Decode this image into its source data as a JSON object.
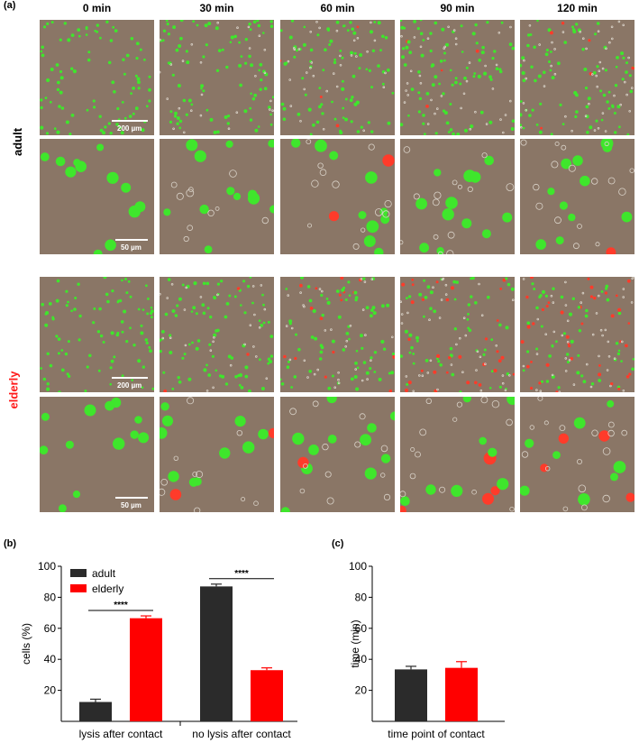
{
  "panel_a": {
    "letter": "(a)",
    "time_points": [
      "0 min",
      "30 min",
      "60 min",
      "90 min",
      "120 min"
    ],
    "groups": [
      {
        "name": "adult",
        "color": "#000000"
      },
      {
        "name": "elderly",
        "color": "#ff1a1a"
      }
    ],
    "scale_overview": "200 µm",
    "scale_zoom": "50 µm",
    "colors": {
      "background": "#8a7666",
      "live_cell": "#3fe62c",
      "dead_cell": "#ff3b2a"
    }
  },
  "chart_data": [
    {
      "panel": "(b)",
      "type": "bar",
      "categories": [
        "lysis after contact",
        "no lysis after contact"
      ],
      "series": [
        {
          "name": "adult",
          "color": "#2b2b2b",
          "values": [
            12.5,
            87
          ],
          "errors": [
            1.8,
            1.5
          ]
        },
        {
          "name": "elderly",
          "color": "#ff0000",
          "values": [
            66.5,
            33
          ],
          "errors": [
            1.5,
            1.5
          ]
        }
      ],
      "ylabel": "cells (%)",
      "yticks": [
        20,
        40,
        60,
        80,
        100
      ],
      "ylim": [
        0,
        100
      ],
      "significance": [
        "****",
        "****"
      ],
      "legend_position": "top-left"
    },
    {
      "panel": "(c)",
      "type": "bar",
      "categories": [
        "time point of contact"
      ],
      "series": [
        {
          "name": "adult",
          "color": "#2b2b2b",
          "values": [
            33.5
          ],
          "errors": [
            2
          ]
        },
        {
          "name": "elderly",
          "color": "#ff0000",
          "values": [
            34.5
          ],
          "errors": [
            4
          ]
        }
      ],
      "ylabel": "time (min)",
      "yticks": [
        20,
        40,
        60,
        80,
        100
      ],
      "ylim": [
        0,
        100
      ]
    }
  ]
}
